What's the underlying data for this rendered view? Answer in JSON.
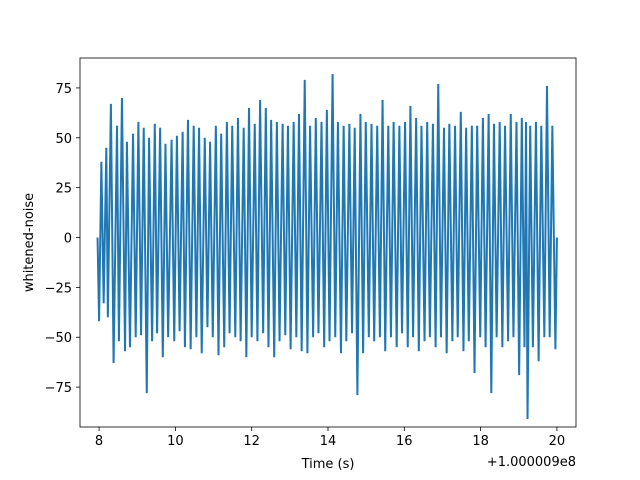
{
  "chart_data": {
    "type": "line",
    "title": "",
    "xlabel": "Time (s)",
    "ylabel": "whitened-noise",
    "x_offset_label": "+1.000009e8",
    "xlim": [
      7.5,
      20.5
    ],
    "ylim": [
      -95,
      90
    ],
    "x_ticks": [
      8,
      10,
      12,
      14,
      16,
      18,
      20
    ],
    "y_ticks": [
      -75,
      -50,
      -25,
      0,
      25,
      50,
      75
    ],
    "grid": false,
    "line_color": "#1f77b4",
    "series": [
      {
        "x": [
          7.96,
          8.0,
          8.06,
          8.12,
          8.19,
          8.23,
          8.31,
          8.38,
          8.47,
          8.52,
          8.6,
          8.68,
          8.73,
          8.81,
          8.89,
          8.96,
          9.03,
          9.1,
          9.17,
          9.25,
          9.31,
          9.39,
          9.46,
          9.52,
          9.6,
          9.67,
          9.74,
          9.81,
          9.9,
          9.97,
          10.04,
          10.11,
          10.19,
          10.25,
          10.33,
          10.4,
          10.48,
          10.55,
          10.62,
          10.69,
          10.77,
          10.84,
          10.91,
          10.98,
          11.06,
          11.13,
          11.2,
          11.28,
          11.35,
          11.42,
          11.49,
          11.57,
          11.64,
          11.71,
          11.79,
          11.86,
          11.93,
          12.0,
          12.08,
          12.15,
          12.22,
          12.3,
          12.37,
          12.44,
          12.51,
          12.59,
          12.66,
          12.73,
          12.81,
          12.88,
          12.95,
          13.02,
          13.1,
          13.17,
          13.24,
          13.31,
          13.39,
          13.46,
          13.53,
          13.61,
          13.68,
          13.75,
          13.83,
          13.9,
          13.97,
          14.04,
          14.12,
          14.19,
          14.26,
          14.34,
          14.41,
          14.48,
          14.56,
          14.63,
          14.7,
          14.77,
          14.85,
          14.92,
          14.99,
          15.07,
          15.14,
          15.21,
          15.29,
          15.36,
          15.43,
          15.5,
          15.58,
          15.65,
          15.72,
          15.8,
          15.87,
          15.94,
          16.02,
          16.09,
          16.16,
          16.23,
          16.31,
          16.38,
          16.45,
          16.53,
          16.6,
          16.67,
          16.75,
          16.82,
          16.89,
          16.96,
          17.04,
          17.11,
          17.18,
          17.26,
          17.33,
          17.4,
          17.48,
          17.55,
          17.62,
          17.69,
          17.77,
          17.84,
          17.91,
          17.99,
          18.06,
          18.13,
          18.21,
          18.28,
          18.35,
          18.42,
          18.5,
          18.57,
          18.64,
          18.72,
          18.79,
          18.86,
          18.94,
          19.01,
          19.08,
          19.15,
          19.19,
          19.23,
          19.3,
          19.37,
          19.45,
          19.52,
          19.59,
          19.67,
          19.74,
          19.81,
          19.88,
          19.96,
          20.0
        ],
        "y": [
          0,
          -42,
          38,
          -33,
          45,
          -40,
          67,
          -63,
          56,
          -52,
          70,
          -57,
          48,
          -55,
          52,
          -50,
          58,
          -49,
          55,
          -78,
          50,
          -52,
          57,
          -48,
          55,
          -60,
          47,
          -50,
          49,
          -52,
          51,
          -47,
          53,
          -55,
          59,
          -56,
          56,
          -50,
          55,
          -58,
          50,
          -45,
          48,
          -50,
          56,
          -59,
          52,
          -55,
          58,
          -48,
          56,
          -50,
          60,
          -52,
          55,
          -60,
          65,
          -50,
          57,
          -52,
          69,
          -48,
          65,
          -55,
          59,
          -60,
          58,
          -52,
          57,
          -49,
          56,
          -56,
          58,
          -50,
          62,
          -57,
          79,
          -58,
          56,
          -50,
          60,
          -48,
          58,
          -55,
          64,
          -52,
          82,
          -50,
          58,
          -58,
          56,
          -52,
          57,
          -48,
          55,
          -79,
          62,
          -58,
          58,
          -50,
          57,
          -52,
          56,
          -50,
          69,
          -57,
          56,
          -50,
          58,
          -55,
          56,
          -48,
          58,
          -55,
          66,
          -50,
          60,
          -57,
          56,
          -52,
          58,
          -50,
          57,
          -55,
          77,
          -50,
          55,
          -58,
          57,
          -52,
          56,
          -50,
          63,
          -57,
          55,
          -52,
          56,
          -68,
          56,
          -50,
          60,
          -55,
          62,
          -78,
          57,
          -50,
          58,
          -55,
          56,
          -52,
          62,
          -50,
          58,
          -69,
          60,
          -55,
          58,
          -91,
          56,
          -55,
          58,
          -62,
          56,
          -50,
          76,
          -50,
          56,
          -56,
          0
        ]
      }
    ]
  }
}
